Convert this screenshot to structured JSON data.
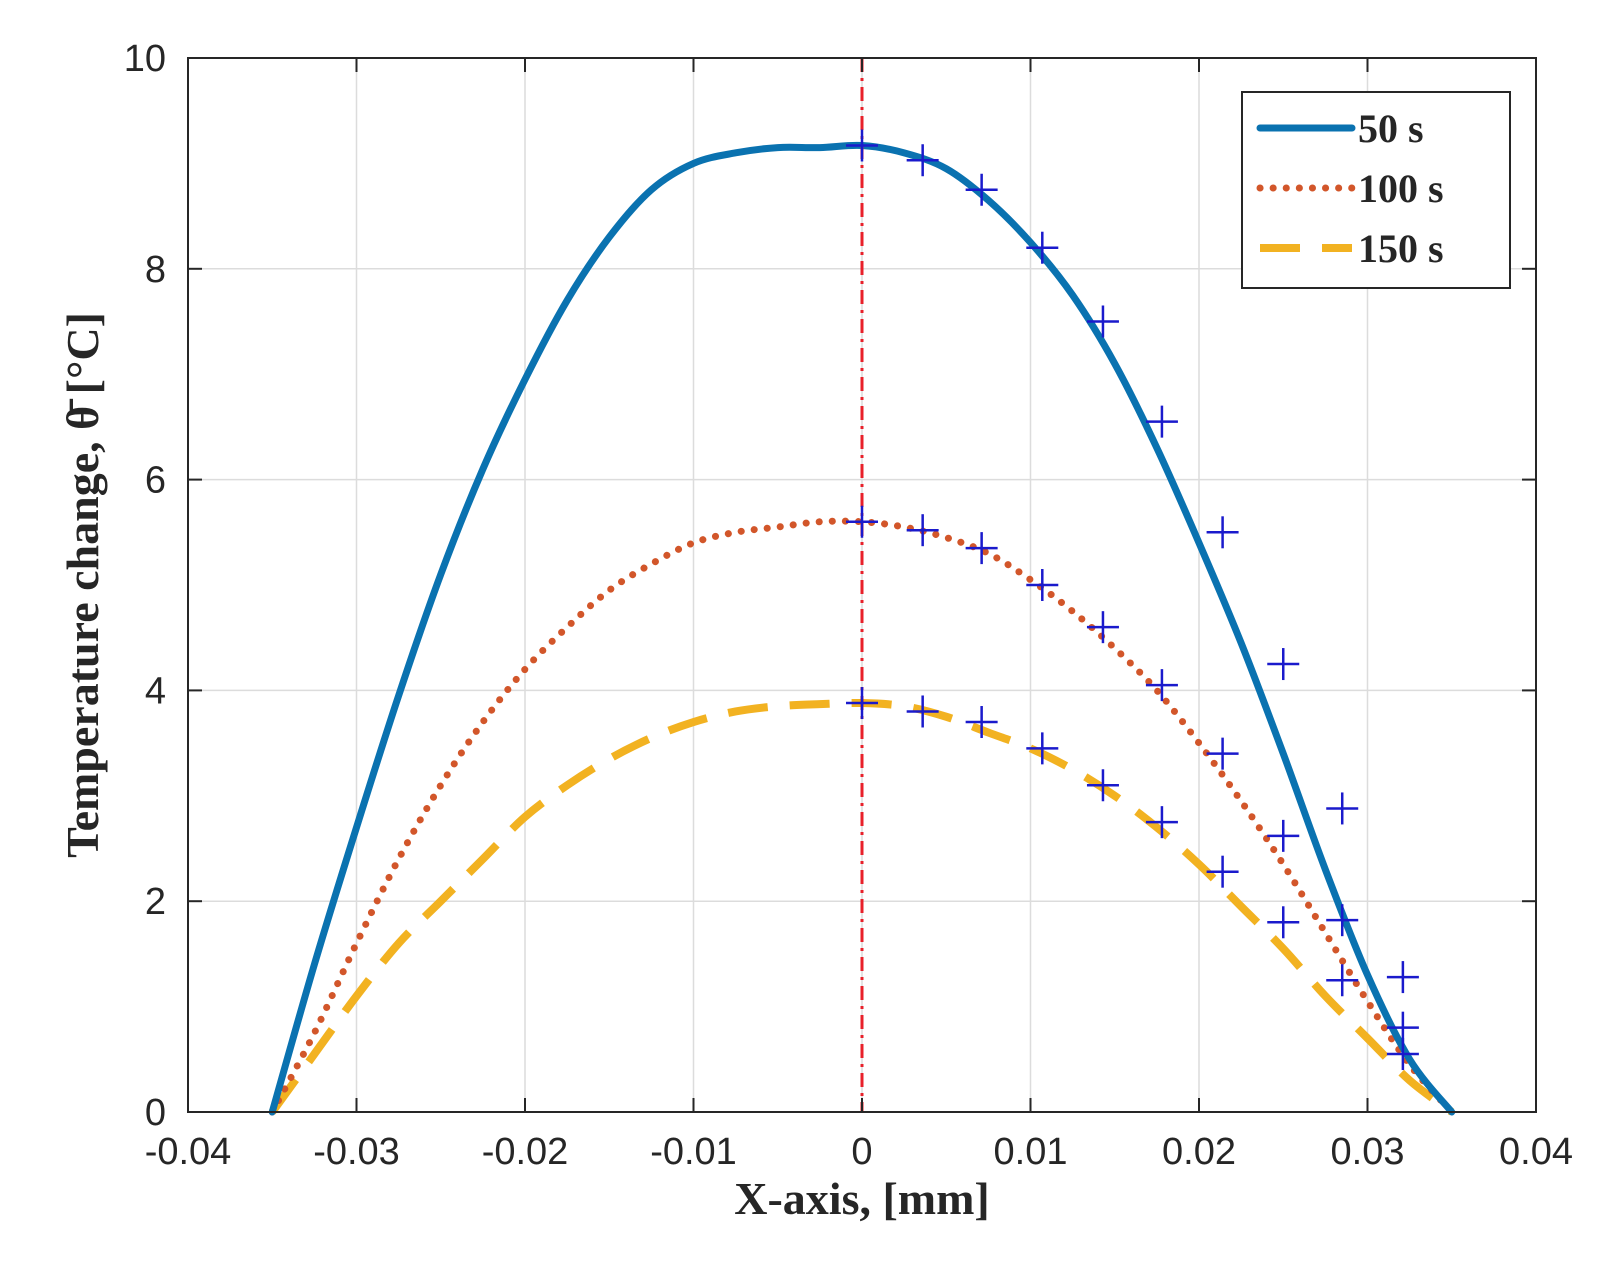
{
  "chart_data": {
    "type": "line",
    "title": "",
    "xlabel": "X-axis, [mm]",
    "ylabel": "Temperature change, θ̄ [°C]",
    "xlim": [
      -0.04,
      0.04
    ],
    "ylim": [
      0,
      10
    ],
    "xticks": [
      -0.04,
      -0.03,
      -0.02,
      -0.01,
      0,
      0.01,
      0.02,
      0.03,
      0.04
    ],
    "yticks": [
      0,
      2,
      4,
      6,
      8,
      10
    ],
    "grid": true,
    "legend_position": "top-right",
    "reference_line": {
      "x": 0,
      "color": "#e8202a",
      "style": "dash-dot"
    },
    "series": [
      {
        "name": "50 s",
        "color": "#0a72b0",
        "style": "solid",
        "x": [
          -0.035,
          -0.0325,
          -0.03,
          -0.0275,
          -0.025,
          -0.0225,
          -0.02,
          -0.0175,
          -0.015,
          -0.0125,
          -0.01,
          -0.0075,
          -0.005,
          -0.0025,
          0,
          0.0025,
          0.005,
          0.0075,
          0.01,
          0.0125,
          0.015,
          0.0175,
          0.02,
          0.0225,
          0.025,
          0.0275,
          0.03,
          0.0325,
          0.035
        ],
        "values": [
          0,
          1.4,
          2.7,
          3.95,
          5.1,
          6.1,
          6.95,
          7.7,
          8.3,
          8.75,
          9.0,
          9.1,
          9.15,
          9.15,
          9.17,
          9.1,
          8.95,
          8.65,
          8.25,
          7.75,
          7.1,
          6.3,
          5.4,
          4.45,
          3.4,
          2.3,
          1.3,
          0.5,
          0
        ]
      },
      {
        "name": "100 s",
        "color": "#d2562a",
        "style": "dotted",
        "x": [
          -0.035,
          -0.0325,
          -0.03,
          -0.0275,
          -0.025,
          -0.0225,
          -0.02,
          -0.0175,
          -0.015,
          -0.0125,
          -0.01,
          -0.0075,
          -0.005,
          -0.0025,
          0,
          0.0025,
          0.005,
          0.0075,
          0.01,
          0.0125,
          0.015,
          0.0175,
          0.02,
          0.0225,
          0.025,
          0.0275,
          0.03,
          0.0325,
          0.035
        ],
        "values": [
          0,
          0.75,
          1.6,
          2.4,
          3.1,
          3.7,
          4.2,
          4.6,
          4.95,
          5.2,
          5.4,
          5.5,
          5.55,
          5.6,
          5.6,
          5.55,
          5.45,
          5.3,
          5.05,
          4.75,
          4.4,
          4.0,
          3.5,
          2.95,
          2.35,
          1.7,
          1.05,
          0.45,
          0
        ]
      },
      {
        "name": "150 s",
        "color": "#f2b221",
        "style": "dashed",
        "x": [
          -0.035,
          -0.0325,
          -0.03,
          -0.0275,
          -0.025,
          -0.0225,
          -0.02,
          -0.0175,
          -0.015,
          -0.0125,
          -0.01,
          -0.0075,
          -0.005,
          -0.0025,
          0,
          0.0025,
          0.005,
          0.0075,
          0.01,
          0.0125,
          0.015,
          0.0175,
          0.02,
          0.0225,
          0.025,
          0.0275,
          0.03,
          0.0325,
          0.035
        ],
        "values": [
          0,
          0.55,
          1.1,
          1.6,
          2.0,
          2.4,
          2.8,
          3.1,
          3.35,
          3.55,
          3.7,
          3.8,
          3.85,
          3.87,
          3.88,
          3.85,
          3.75,
          3.6,
          3.45,
          3.25,
          3.0,
          2.7,
          2.35,
          1.95,
          1.55,
          1.1,
          0.7,
          0.3,
          0
        ]
      }
    ],
    "markers": [
      {
        "name": "+ markers on 50 s",
        "color": "#1a1acc",
        "x": [
          0,
          0.0036,
          0.0071,
          0.0107,
          0.0143,
          0.0178,
          0.0214,
          0.025,
          0.0285,
          0.0321
        ],
        "values": [
          9.17,
          9.03,
          8.75,
          8.2,
          7.5,
          6.55,
          5.5,
          4.25,
          2.88,
          1.28
        ]
      },
      {
        "name": "+ markers on 100 s",
        "color": "#1a1acc",
        "x": [
          0,
          0.0036,
          0.0071,
          0.0107,
          0.0143,
          0.0178,
          0.0214,
          0.025,
          0.0285,
          0.0321
        ],
        "values": [
          5.6,
          5.52,
          5.35,
          5.0,
          4.6,
          4.05,
          3.4,
          2.62,
          1.82,
          0.8
        ]
      },
      {
        "name": "+ markers on 150 s",
        "color": "#1a1acc",
        "x": [
          0,
          0.0036,
          0.0071,
          0.0107,
          0.0143,
          0.0178,
          0.0214,
          0.025,
          0.0285,
          0.0321
        ],
        "values": [
          3.88,
          3.8,
          3.7,
          3.45,
          3.1,
          2.75,
          2.28,
          1.8,
          1.25,
          0.55
        ]
      }
    ]
  }
}
